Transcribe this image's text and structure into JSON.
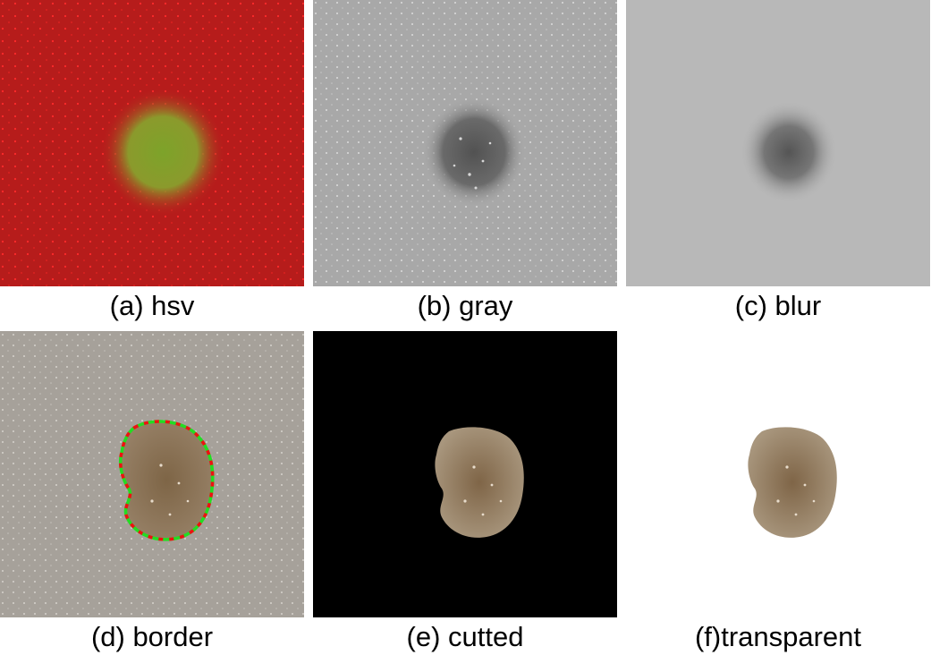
{
  "figure": {
    "panels": [
      {
        "id": "a",
        "caption": "(a) hsv"
      },
      {
        "id": "b",
        "caption": "(b) gray"
      },
      {
        "id": "c",
        "caption": "(c) blur"
      },
      {
        "id": "d",
        "caption": "(d) border"
      },
      {
        "id": "e",
        "caption": "(e) cutted"
      },
      {
        "id": "f",
        "caption": "(f)transparent"
      }
    ]
  },
  "colors": {
    "hsv_background": "#b81c1c",
    "hsv_lesion": "#8a8a2a",
    "gray_background": "#a9a9a9",
    "gray_lesion": "#555555",
    "blur_background": "#b9b9b9",
    "blur_lesion": "#5a5a5a",
    "skin_background": "#a7a29b",
    "lesion_color": "#8e7759",
    "border_green": "#22dd22",
    "border_red": "#ee1111",
    "cut_background": "#000000",
    "transparent_background": "#ffffff"
  }
}
